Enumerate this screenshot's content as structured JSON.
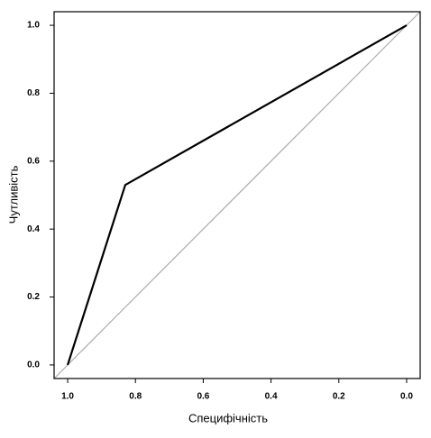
{
  "chart_data": {
    "type": "line",
    "xlabel": "Специфічність",
    "ylabel": "Чутливість",
    "x": [
      1.0,
      0.83,
      0.0
    ],
    "series": [
      {
        "color": "#000000",
        "values": [
          0.0,
          0.53,
          1.0
        ]
      }
    ],
    "diagonal_color": "#aaaaaa",
    "xlim": [
      1.04,
      -0.04
    ],
    "ylim": [
      -0.04,
      1.04
    ],
    "xticks": [
      {
        "value": 1,
        "label": "1.0"
      },
      0.8,
      0.6,
      0.4,
      0.2,
      {
        "value": 0,
        "label": "0.0"
      }
    ],
    "yticks": [
      {
        "value": 0,
        "label": "0.0"
      },
      0.2,
      0.4,
      0.6,
      0.8,
      {
        "value": 1,
        "label": "1.0"
      }
    ],
    "grid": false
  }
}
